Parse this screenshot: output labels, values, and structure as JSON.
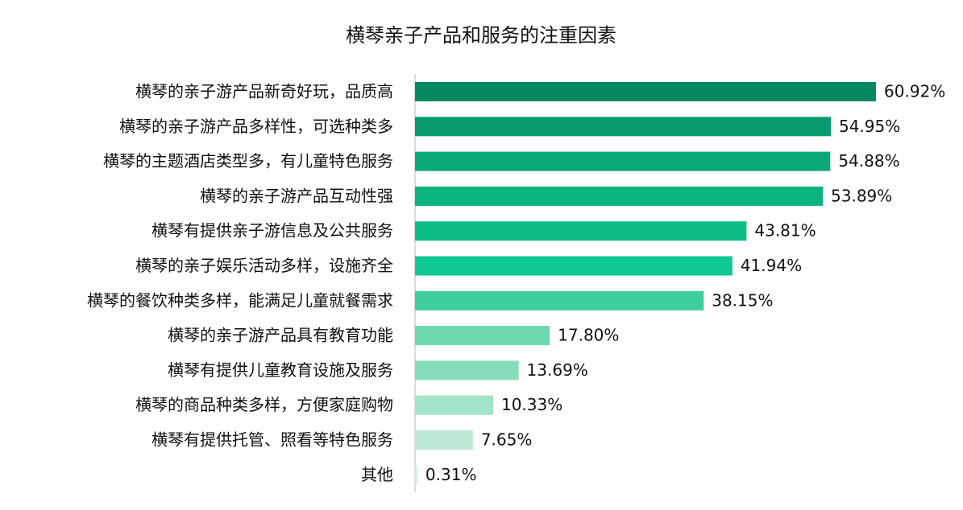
{
  "chart_data": {
    "type": "bar",
    "orientation": "horizontal",
    "title": "横琴亲子产品和服务的注重因素",
    "categories": [
      "横琴的亲子游产品新奇好玩，品质高",
      "横琴的亲子游产品多样性，可选种类多",
      "横琴的主题酒店类型多，有儿童特色服务",
      "横琴的亲子游产品互动性强",
      "横琴有提供亲子游信息及公共服务",
      "横琴的亲子娱乐活动多样，设施齐全",
      "横琴的餐饮种类多样，能满足儿童就餐需求",
      "横琴的亲子游产品具有教育功能",
      "横琴有提供儿童教育设施及服务",
      "横琴的商品种类多样，方便家庭购物",
      "横琴有提供托管、照看等特色服务",
      "其他"
    ],
    "values": [
      60.92,
      54.95,
      54.88,
      53.89,
      43.81,
      41.94,
      38.15,
      17.8,
      13.69,
      10.33,
      7.65,
      0.31
    ],
    "value_labels": [
      "60.92%",
      "54.95%",
      "54.88%",
      "53.89%",
      "43.81%",
      "41.94%",
      "38.15%",
      "17.80%",
      "13.69%",
      "10.33%",
      "7.65%",
      "0.31%"
    ],
    "colors": [
      "#05875f",
      "#089a6e",
      "#0aa876",
      "#0bb47e",
      "#0dbf86",
      "#10c993",
      "#3fcf9c",
      "#6dd8ae",
      "#86ddb9",
      "#a2e5c8",
      "#bde9d4",
      "#d6f0e4"
    ]
  }
}
